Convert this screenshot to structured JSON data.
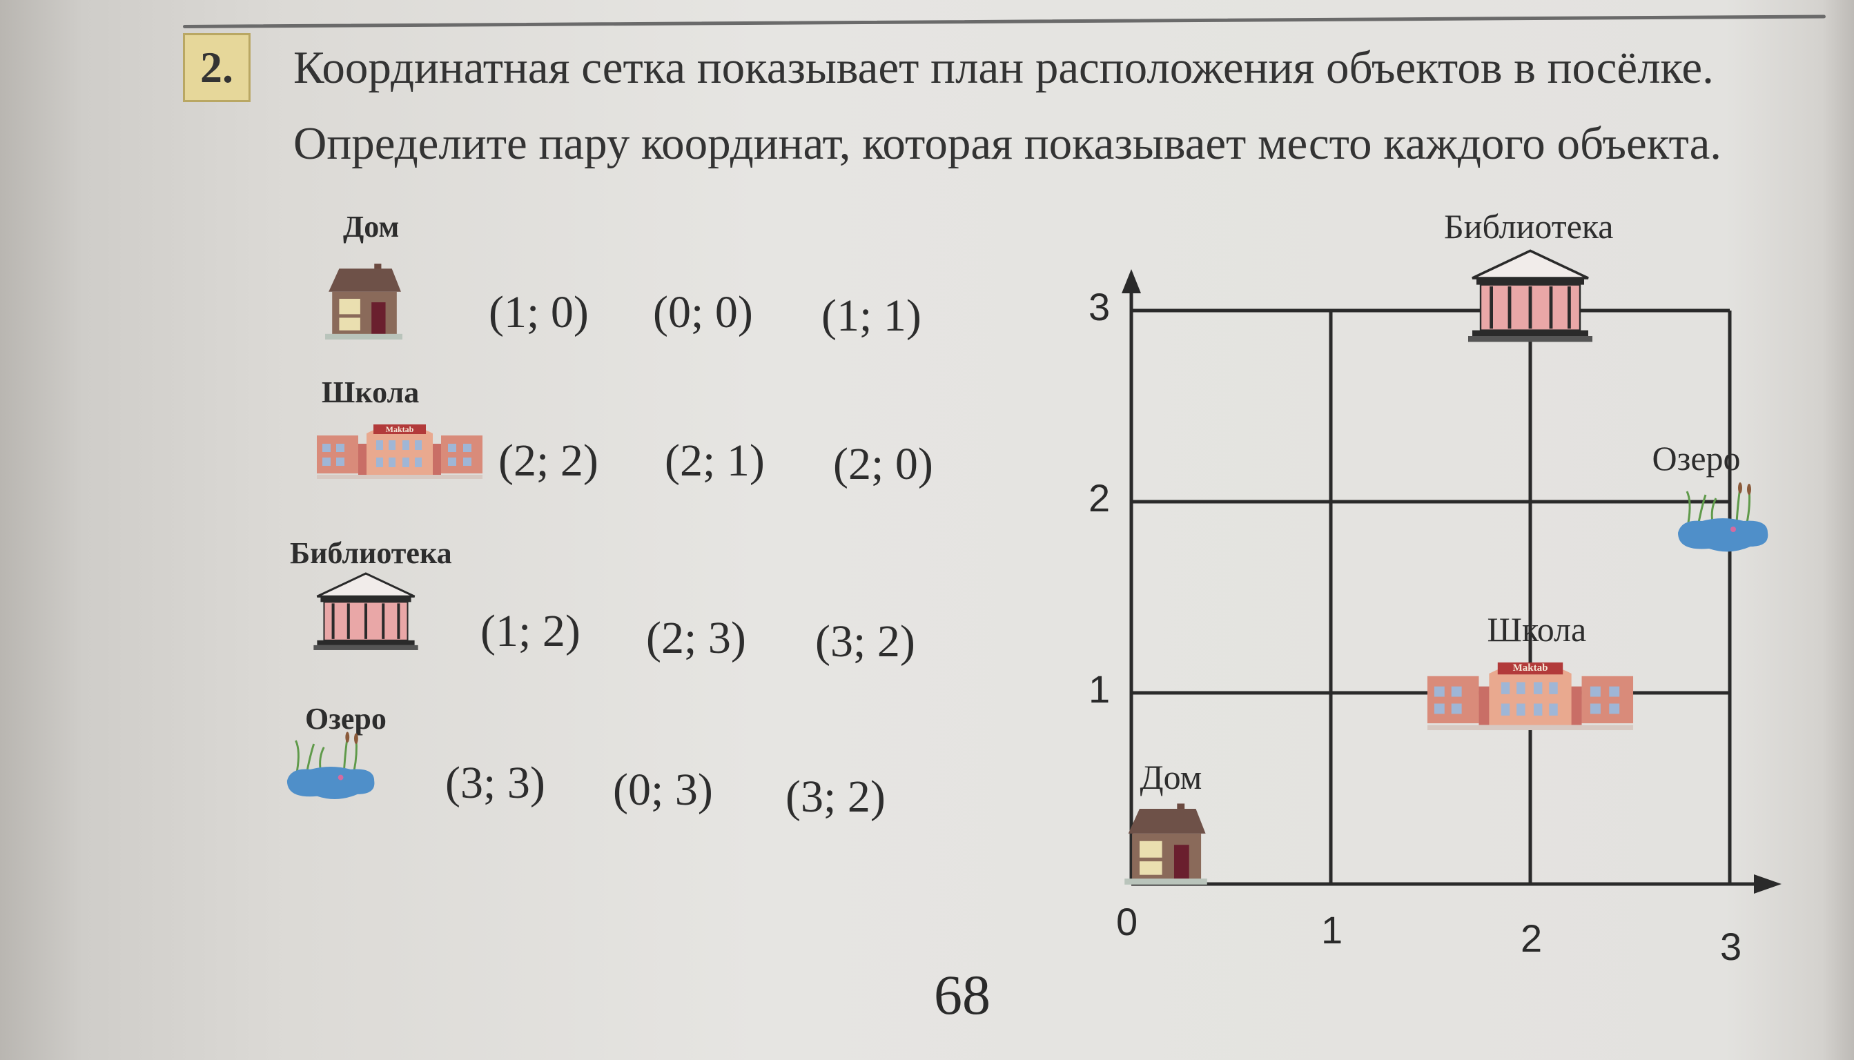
{
  "task": {
    "number": "2.",
    "line1": "Координатная сетка показывает план расположения объектов в посёлке.",
    "line2": "Определите пару координат, которая показывает место каждого объекта."
  },
  "objects": [
    {
      "label": "Дом",
      "icon": "house-icon",
      "options": [
        "(1; 0)",
        "(0; 0)",
        "(1; 1)"
      ]
    },
    {
      "label": "Школа",
      "icon": "school-icon",
      "options": [
        "(2; 2)",
        "(2; 1)",
        "(2; 0)"
      ]
    },
    {
      "label": "Библиотека",
      "icon": "library-icon",
      "options": [
        "(1; 2)",
        "(2; 3)",
        "(3; 2)"
      ]
    },
    {
      "label": "Озеро",
      "icon": "lake-icon",
      "options": [
        "(3; 3)",
        "(0; 3)",
        "(3; 2)"
      ]
    }
  ],
  "grid": {
    "x_ticks": [
      "0",
      "1",
      "2",
      "3"
    ],
    "y_ticks": [
      "1",
      "2",
      "3"
    ],
    "range": {
      "x": [
        0,
        3
      ],
      "y": [
        0,
        3
      ]
    },
    "places": [
      {
        "label": "Дом",
        "icon": "house-icon",
        "x": 0,
        "y": 0
      },
      {
        "label": "Школа",
        "icon": "school-icon",
        "x": 2,
        "y": 1
      },
      {
        "label": "Библиотека",
        "icon": "library-icon",
        "x": 2,
        "y": 3
      },
      {
        "label": "Озеро",
        "icon": "lake-icon",
        "x": 3,
        "y": 2
      }
    ]
  },
  "page_number": "68",
  "school_sign": "Maktab"
}
